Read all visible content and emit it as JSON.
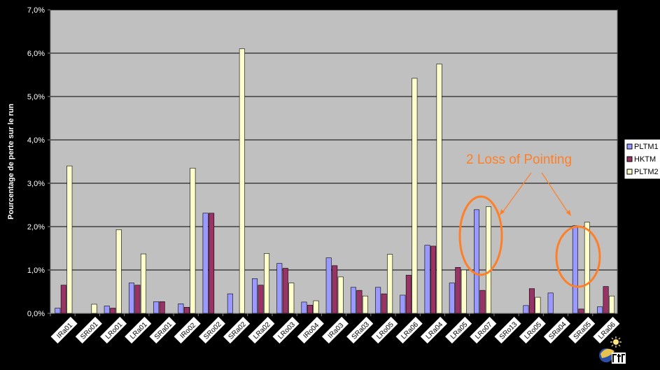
{
  "chart_data": {
    "type": "bar",
    "ylabel": "Pourcentage de perte sur le run",
    "ylim": [
      0,
      7
    ],
    "yticks": [
      "0,0%",
      "1,0%",
      "2,0%",
      "3,0%",
      "4,0%",
      "5,0%",
      "6,0%",
      "7,0%"
    ],
    "grid": true,
    "legend_position": "right",
    "categories": [
      "IRa01",
      "SRo01",
      "LRo01",
      "LRa01",
      "SRa01",
      "IRo02",
      "SRo02",
      "SRa02",
      "LRa02",
      "LRo03",
      "IRo04",
      "IRa03",
      "SRa03",
      "LRo05",
      "LRa06",
      "LRa04",
      "LRa05",
      "LRo07",
      "SRo13",
      "LRo05",
      "SRa04",
      "SRa05",
      "LRa06"
    ],
    "series": [
      {
        "name": "PLTM1",
        "color": "#9999FF",
        "values": [
          0.12,
          0,
          0.17,
          0.7,
          0.27,
          0.22,
          2.31,
          0.45,
          0.8,
          1.15,
          0.26,
          1.28,
          0.6,
          0.6,
          0.42,
          1.57,
          0.7,
          2.39,
          0,
          0.18,
          0.47,
          2.02,
          0.15
        ]
      },
      {
        "name": "HKTM",
        "color": "#993366",
        "values": [
          0.65,
          0,
          0.12,
          0.65,
          0.27,
          0.14,
          2.31,
          0,
          0.65,
          1.04,
          0.19,
          1.1,
          0.53,
          0.45,
          0.88,
          1.55,
          1.06,
          0.53,
          0,
          0.57,
          0,
          0.1,
          0.62
        ]
      },
      {
        "name": "PLTM2",
        "color": "#FFFFCC",
        "values": [
          3.4,
          0.21,
          1.93,
          1.37,
          0,
          3.35,
          0,
          6.1,
          1.38,
          0.7,
          0.29,
          0.84,
          0.4,
          1.36,
          5.42,
          5.75,
          1.0,
          2.46,
          0,
          0.37,
          0,
          2.1,
          0.4
        ]
      }
    ],
    "legend_labels": [
      "PLTM1",
      "HKTM",
      "PLTM2"
    ],
    "annotation": {
      "text": "2 Loss of Pointing",
      "color": "#FF7F27",
      "circled_categories": [
        17,
        21
      ]
    },
    "plot_color": "#C0C0C0",
    "logo_name": "cnrs-logo"
  }
}
